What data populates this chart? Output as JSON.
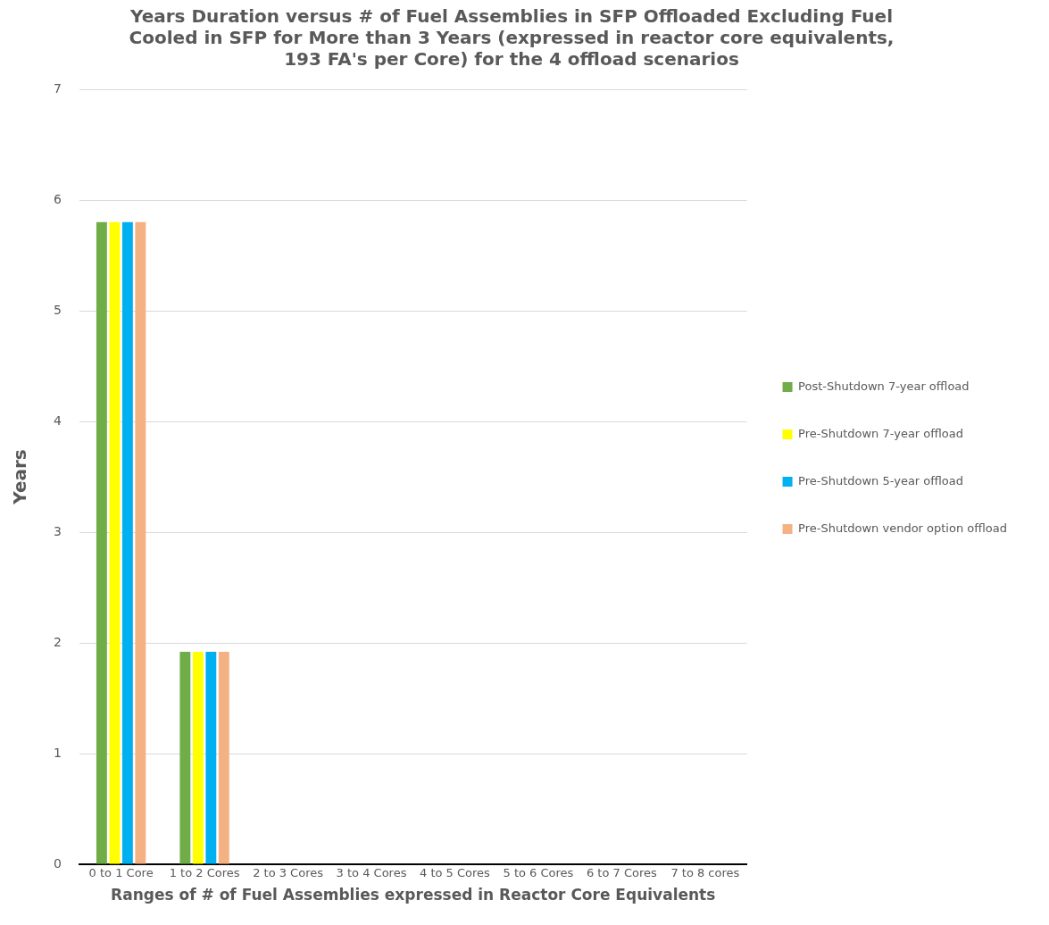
{
  "chart_data": {
    "type": "bar",
    "title": "Years Duration versus # of Fuel Assemblies in SFP Offloaded Excluding Fuel Cooled in SFP for More than 3 Years (expressed in reactor core equivalents, 193 FA's per Core) for the 4 offload scenarios",
    "xlabel": "Ranges of # of Fuel Assemblies expressed in Reactor Core Equivalents",
    "ylabel": "Years",
    "categories": [
      "0 to 1 Core",
      "1 to 2 Cores",
      "2 to 3 Cores",
      "3 to 4 Cores",
      "4 to 5 Cores",
      "5 to 6 Cores",
      "6 to 7 Cores",
      "7 to 8 cores"
    ],
    "series": [
      {
        "name": "Post-Shutdown 7-year offload",
        "color": "#70ad47",
        "values": [
          5.8,
          1.92,
          0,
          0,
          0,
          0,
          0,
          0
        ]
      },
      {
        "name": "Pre-Shutdown 7-year offload",
        "color": "#ffff00",
        "values": [
          5.8,
          1.92,
          0,
          0,
          0,
          0,
          0,
          0
        ]
      },
      {
        "name": "Pre-Shutdown 5-year offload",
        "color": "#00b0f0",
        "values": [
          5.8,
          1.92,
          0,
          0,
          0,
          0,
          0,
          0
        ]
      },
      {
        "name": "Pre-Shutdown vendor option offload",
        "color": "#f4b183",
        "values": [
          5.8,
          1.92,
          0,
          0,
          0,
          0,
          0,
          0
        ]
      }
    ],
    "ylim": [
      0,
      7
    ],
    "yticks": [
      0,
      1,
      2,
      3,
      4,
      5,
      6,
      7
    ],
    "grid": "y",
    "legend": "right"
  }
}
